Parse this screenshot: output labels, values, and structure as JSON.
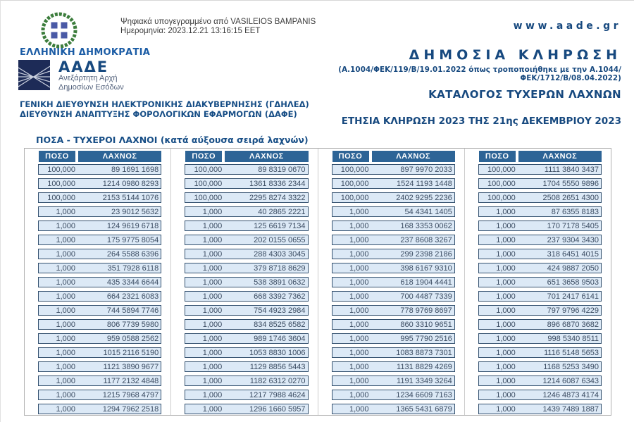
{
  "header": {
    "signature_line1": "Ψηφιακά υπογεγραμμένο από VASILEIOS BAMPANIS",
    "signature_line2": "Ημερομηνία: 2023.12.21 13:16:15 EET",
    "republic": "ΕΛΛΗΝΙΚΗ ΔΗΜΟΚΡΑΤΙΑ",
    "agency_acronym": "ΑΑΔΕ",
    "agency_sub1": "Ανεξάρτητη Αρχή",
    "agency_sub2": "Δημοσίων Εσόδων",
    "dept_line1": "ΓΕΝΙΚΗ ΔΙΕΥΘΥΝΣΗ ΗΛΕΚΤΡΟΝΙΚΗΣ ΔΙΑΚΥΒΕΡΝΗΣΗΣ (ΓΔΗΛΕΔ)",
    "dept_line2": "ΔΙΕΥΘΥΝΣΗ ΑΝΑΠΤΥΞΗΣ ΦΟΡΟΛΟΓΙΚΩΝ ΕΦΑΡΜΟΓΩΝ (ΔΑΦΕ)",
    "website": "www.aade.gr",
    "draw_title": "ΔΗΜΟΣΙΑ ΚΛΗΡΩΣΗ",
    "legal_reference": "(Α.1004/ΦΕΚ/119/Β/19.01.2022 όπως τροποποιήθηκε με την Α.1044/ΦΕΚ/1712/Β/08.04.2022)",
    "catalog_subtitle": "ΚΑΤΑΛΟΓΟΣ ΤΥΧΕΡΩΝ ΛΑΧΝΩΝ",
    "annual_draw_line": "ΕΤΗΣΙΑ ΚΛΗΡΩΣΗ 2023 ΤΗΣ 21ης ΔΕΚΕΜΒΡΙΟΥ 2023"
  },
  "colors": {
    "brand_navy": "#174e86",
    "table_header_bg": "#2d6496",
    "row_bg": "#dce9f6",
    "row_border": "#33506e",
    "emblem_green": "#3c7d3c",
    "emblem_blue": "#4a5aa6",
    "logo_navy": "#1d2b57"
  },
  "table": {
    "section_title": "ΠΟΣΑ - ΤΥΧΕΡΟΙ ΛΑΧΝΟΙ (κατά αύξουσα σειρά λαχνών)",
    "col_amount": "ΠΟΣΟ",
    "col_number": "ΛΑΧΝΟΣ",
    "groups": [
      [
        {
          "amount": "100,000",
          "number": "89 1691 1698"
        },
        {
          "amount": "100,000",
          "number": "1214 0980 8293"
        },
        {
          "amount": "100,000",
          "number": "2153 5144 1076"
        },
        {
          "amount": "1,000",
          "number": "23 9012 5632"
        },
        {
          "amount": "1,000",
          "number": "124 9619 6718"
        },
        {
          "amount": "1,000",
          "number": "175 9775 8054"
        },
        {
          "amount": "1,000",
          "number": "264 5588 6396"
        },
        {
          "amount": "1,000",
          "number": "351 7928 6118"
        },
        {
          "amount": "1,000",
          "number": "435 3344 6644"
        },
        {
          "amount": "1,000",
          "number": "664 2321 6083"
        },
        {
          "amount": "1,000",
          "number": "744 5894 7746"
        },
        {
          "amount": "1,000",
          "number": "806 7739 5980"
        },
        {
          "amount": "1,000",
          "number": "959 0588 2562"
        },
        {
          "amount": "1,000",
          "number": "1015 2116 5190"
        },
        {
          "amount": "1,000",
          "number": "1121 3890 9677"
        },
        {
          "amount": "1,000",
          "number": "1177 2132 4848"
        },
        {
          "amount": "1,000",
          "number": "1215 7968 4797"
        },
        {
          "amount": "1,000",
          "number": "1294 7962 2518"
        }
      ],
      [
        {
          "amount": "100,000",
          "number": "89 8319 0670"
        },
        {
          "amount": "100,000",
          "number": "1361 8336 2344"
        },
        {
          "amount": "100,000",
          "number": "2295 8274 3322"
        },
        {
          "amount": "1,000",
          "number": "40 2865 2221"
        },
        {
          "amount": "1,000",
          "number": "125 6619 7134"
        },
        {
          "amount": "1,000",
          "number": "202 0155 0655"
        },
        {
          "amount": "1,000",
          "number": "288 4303 3045"
        },
        {
          "amount": "1,000",
          "number": "379 8718 8629"
        },
        {
          "amount": "1,000",
          "number": "538 3891 0632"
        },
        {
          "amount": "1,000",
          "number": "668 3392 7362"
        },
        {
          "amount": "1,000",
          "number": "754 4923 2984"
        },
        {
          "amount": "1,000",
          "number": "834 8525 6582"
        },
        {
          "amount": "1,000",
          "number": "989 1746 3604"
        },
        {
          "amount": "1,000",
          "number": "1053 8830 1006"
        },
        {
          "amount": "1,000",
          "number": "1129 8856 5443"
        },
        {
          "amount": "1,000",
          "number": "1182 6312 0270"
        },
        {
          "amount": "1,000",
          "number": "1217 7988 4624"
        },
        {
          "amount": "1,000",
          "number": "1296 1660 5957"
        }
      ],
      [
        {
          "amount": "100,000",
          "number": "897 9970 2033"
        },
        {
          "amount": "100,000",
          "number": "1524 1193 1448"
        },
        {
          "amount": "100,000",
          "number": "2402 9295 2236"
        },
        {
          "amount": "1,000",
          "number": "54 4341 1405"
        },
        {
          "amount": "1,000",
          "number": "168 3353 0062"
        },
        {
          "amount": "1,000",
          "number": "237 8608 3267"
        },
        {
          "amount": "1,000",
          "number": "299 2398 2186"
        },
        {
          "amount": "1,000",
          "number": "398 6167 9310"
        },
        {
          "amount": "1,000",
          "number": "618 1904 4441"
        },
        {
          "amount": "1,000",
          "number": "700 4487 7339"
        },
        {
          "amount": "1,000",
          "number": "778 9769 8697"
        },
        {
          "amount": "1,000",
          "number": "860 3310 9651"
        },
        {
          "amount": "1,000",
          "number": "995 7790 2516"
        },
        {
          "amount": "1,000",
          "number": "1083 8873 7301"
        },
        {
          "amount": "1,000",
          "number": "1131 8829 4269"
        },
        {
          "amount": "1,000",
          "number": "1191 3349 3264"
        },
        {
          "amount": "1,000",
          "number": "1234 6609 7163"
        },
        {
          "amount": "1,000",
          "number": "1365 5431 6879"
        }
      ],
      [
        {
          "amount": "100,000",
          "number": "1111 3840 3437"
        },
        {
          "amount": "100,000",
          "number": "1704 5550 9896"
        },
        {
          "amount": "100,000",
          "number": "2508 2651 4300"
        },
        {
          "amount": "1,000",
          "number": "87 6355 8183"
        },
        {
          "amount": "1,000",
          "number": "170 7178 5405"
        },
        {
          "amount": "1,000",
          "number": "237 9304 3430"
        },
        {
          "amount": "1,000",
          "number": "318 6451 4015"
        },
        {
          "amount": "1,000",
          "number": "424 9887 2050"
        },
        {
          "amount": "1,000",
          "number": "651 3658 9503"
        },
        {
          "amount": "1,000",
          "number": "701 2417 6141"
        },
        {
          "amount": "1,000",
          "number": "797 9796 4229"
        },
        {
          "amount": "1,000",
          "number": "896 6870 3682"
        },
        {
          "amount": "1,000",
          "number": "998 5340 8511"
        },
        {
          "amount": "1,000",
          "number": "1116 5148 5653"
        },
        {
          "amount": "1,000",
          "number": "1168 5253 3490"
        },
        {
          "amount": "1,000",
          "number": "1214 6087 6343"
        },
        {
          "amount": "1,000",
          "number": "1246 4873 4174"
        },
        {
          "amount": "1,000",
          "number": "1439 7489 1887"
        }
      ]
    ]
  }
}
